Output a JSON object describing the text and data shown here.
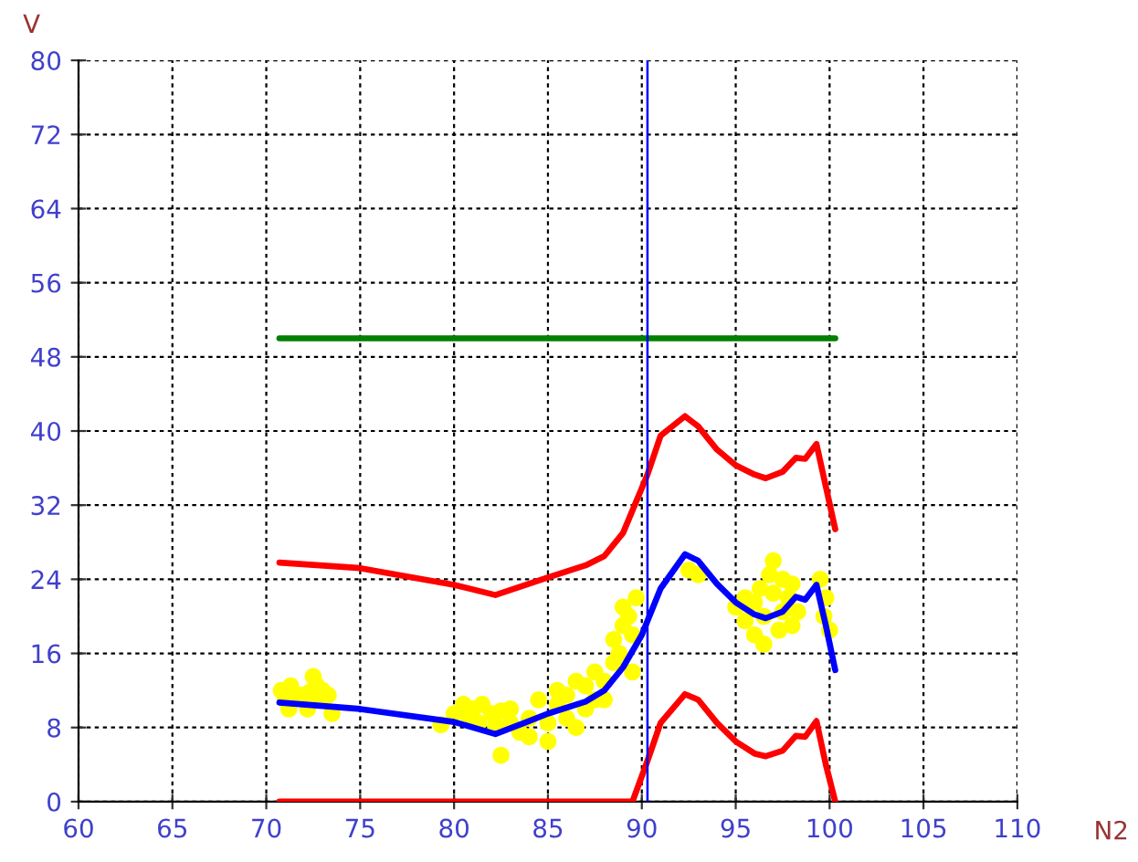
{
  "chart_data": {
    "type": "line",
    "xlabel": "N2",
    "ylabel": "V",
    "xlim": [
      60,
      110
    ],
    "xticks": [
      60,
      65,
      70,
      75,
      80,
      85,
      90,
      95,
      100,
      105,
      110
    ],
    "ylim": [
      0,
      80
    ],
    "yticks": [
      0,
      8,
      16,
      24,
      32,
      40,
      48,
      56,
      64,
      72,
      80
    ],
    "grid": true,
    "line_style": "solid",
    "ref_lines": [
      {
        "axis": "x",
        "value": 90.3,
        "color": "#0000ff"
      }
    ],
    "series": [
      {
        "type": "scatter",
        "color": "#ffff00",
        "marker": "circle",
        "x": [
          70.8,
          71,
          71.3,
          71.8,
          72.3,
          72.5,
          72.7,
          72.8,
          73,
          73.3,
          73.5,
          71.2,
          72.2,
          79.3,
          80,
          80.5,
          80.8,
          81,
          81.3,
          81.5,
          82,
          82.2,
          82.5,
          82.5,
          83,
          83,
          83.5,
          84,
          84,
          84.5,
          85,
          85,
          85.5,
          85.5,
          86,
          86,
          86.5,
          86.5,
          87,
          87,
          87.5,
          87.5,
          88,
          88,
          88.5,
          88.5,
          88.8,
          89,
          89,
          89.3,
          89.5,
          89.7,
          89.5,
          92.5,
          93,
          95,
          95.5,
          95.5,
          96,
          96,
          96.3,
          96.5,
          96.5,
          96.8,
          97,
          97,
          97.3,
          97.5,
          97.5,
          97.8,
          98,
          98,
          98.3,
          99.5,
          99.8,
          100,
          99.7
        ],
        "values": [
          12,
          11,
          12.5,
          11.5,
          11.8,
          13.5,
          12.5,
          11,
          12,
          11.5,
          9.5,
          10,
          10,
          8.3,
          9.5,
          10.5,
          9,
          10,
          8.5,
          10.5,
          9.5,
          8.2,
          9.8,
          5,
          8.5,
          10,
          7.5,
          9,
          7,
          11,
          6.5,
          8.5,
          10.5,
          12,
          9,
          11.5,
          13,
          8,
          10,
          12.5,
          11,
          14,
          13,
          11,
          15,
          17.5,
          16,
          19,
          21,
          20,
          18,
          22,
          14,
          25,
          24.5,
          21,
          19.5,
          22,
          18,
          21.5,
          23,
          17,
          20,
          24.5,
          22.5,
          26,
          18.5,
          20.5,
          24,
          22,
          19,
          23.5,
          20.5,
          24,
          22,
          18.5,
          20
        ]
      },
      {
        "color": "#008000",
        "x": [
          70.7,
          100.3
        ],
        "values": [
          50,
          50
        ]
      },
      {
        "color": "#ff0000",
        "x": [
          70.7,
          75,
          80,
          82.2,
          85,
          87,
          88,
          89,
          90.3,
          91,
          92.3,
          93,
          94,
          95,
          96,
          96.6,
          97.5,
          98.2,
          98.7,
          99.3,
          99.8,
          100.3
        ],
        "values": [
          25.8,
          25.2,
          23.4,
          22.3,
          24.2,
          25.5,
          26.5,
          29,
          35.3,
          39.5,
          41.6,
          40.5,
          38,
          36.3,
          35.3,
          34.9,
          35.6,
          37.1,
          37,
          38.6,
          34,
          29.4
        ]
      },
      {
        "color": "#0000ff",
        "x": [
          70.7,
          75,
          80,
          82.2,
          84,
          85,
          87,
          88,
          89,
          90,
          91,
          92.3,
          93,
          94,
          95,
          96,
          96.6,
          97.5,
          98.2,
          98.7,
          99.3,
          99.8,
          100.3
        ],
        "values": [
          10.7,
          10,
          8.6,
          7.3,
          8.7,
          9.5,
          10.8,
          12,
          14.5,
          18,
          23,
          26.7,
          26,
          23.5,
          21.5,
          20.2,
          19.8,
          20.5,
          22.1,
          21.8,
          23.4,
          19,
          14.2
        ]
      },
      {
        "color": "#ff0000",
        "x": [
          70.7,
          89.5,
          90.3,
          91,
          92.3,
          93,
          94,
          95,
          96,
          96.6,
          97.5,
          98.2,
          98.7,
          99.3,
          99.8,
          100.3
        ],
        "values": [
          0,
          0,
          4.4,
          8.5,
          11.6,
          11,
          8.5,
          6.5,
          5.2,
          4.9,
          5.5,
          7.1,
          7,
          8.7,
          4,
          0
        ]
      }
    ]
  }
}
